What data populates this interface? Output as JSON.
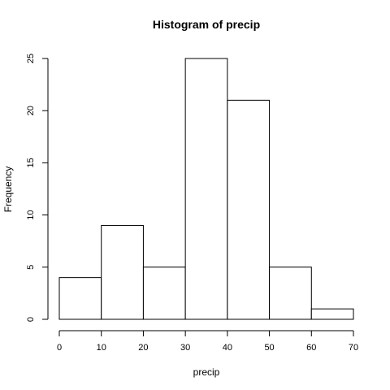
{
  "chart_data": {
    "type": "bar",
    "title": "Histogram of precip",
    "xlabel": "precip",
    "ylabel": "Frequency",
    "bins": [
      {
        "from": 0,
        "to": 10,
        "count": 4
      },
      {
        "from": 10,
        "to": 20,
        "count": 9
      },
      {
        "from": 20,
        "to": 30,
        "count": 5
      },
      {
        "from": 30,
        "to": 40,
        "count": 25
      },
      {
        "from": 40,
        "to": 50,
        "count": 21
      },
      {
        "from": 50,
        "to": 60,
        "count": 5
      },
      {
        "from": 60,
        "to": 70,
        "count": 1
      }
    ],
    "xlim": [
      0,
      70
    ],
    "ylim": [
      0,
      25
    ],
    "xticks": [
      "0",
      "10",
      "20",
      "30",
      "40",
      "50",
      "60",
      "70"
    ],
    "yticks": [
      "0",
      "5",
      "10",
      "15",
      "20",
      "25"
    ],
    "grid": false,
    "bar_fill": "#ffffff",
    "bar_stroke": "#000000"
  }
}
